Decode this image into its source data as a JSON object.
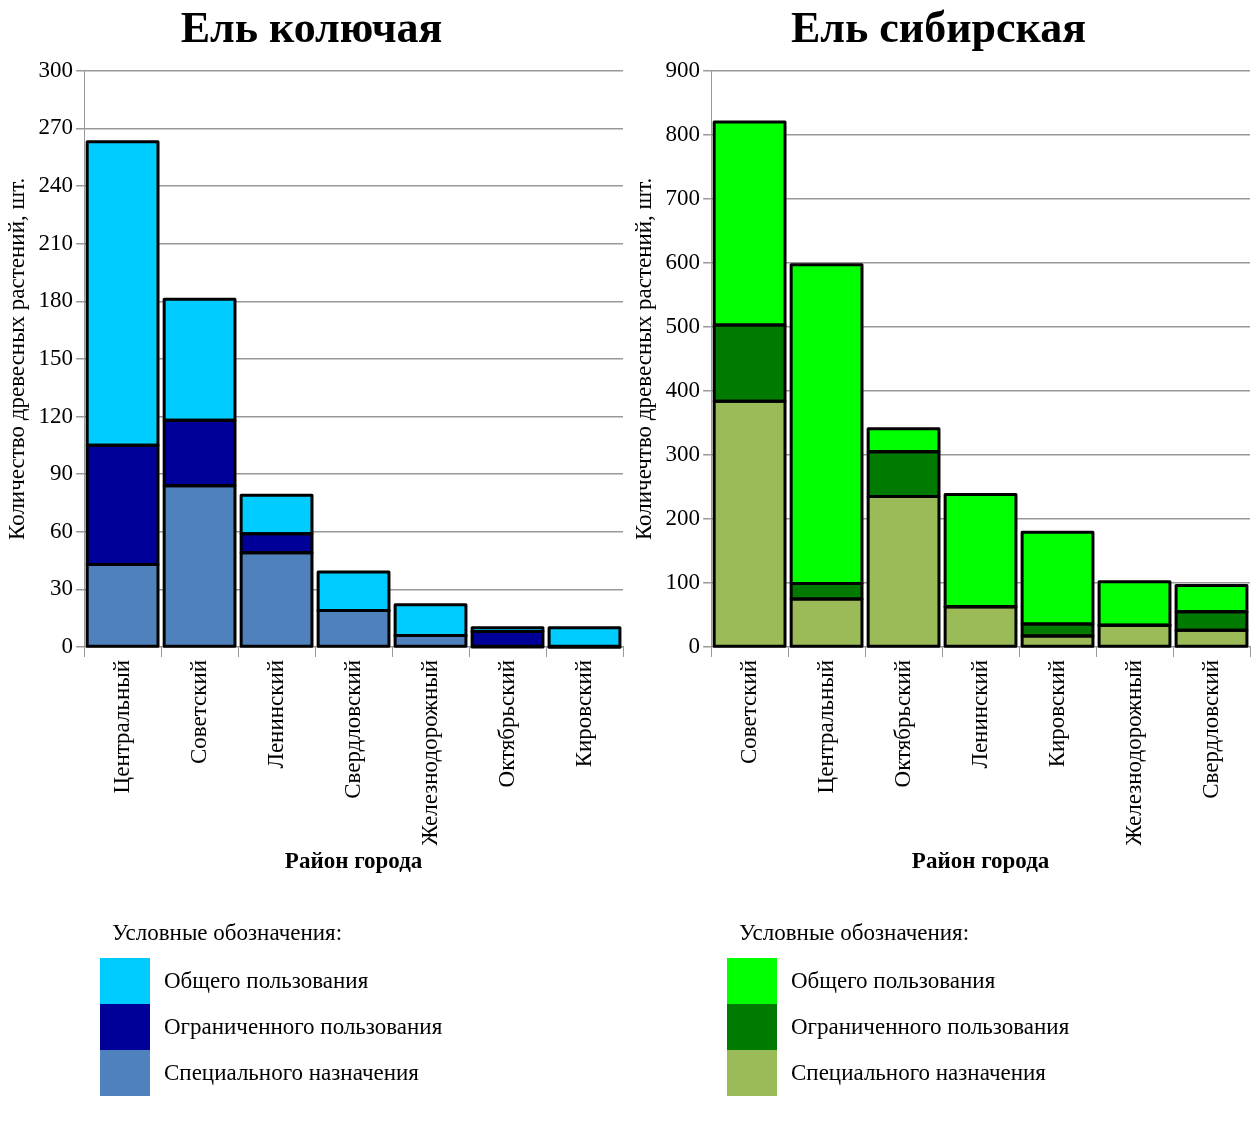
{
  "chart_data": [
    {
      "type": "bar",
      "title": "Ель колючая",
      "xlabel": "Район города",
      "ylabel": "Количество древесных растений, шт.",
      "legend_title": "Условные обозначения:",
      "stacked": true,
      "grid": "y",
      "legend": "bottom",
      "categories": [
        "Центральный",
        "Советский",
        "Ленинский",
        "Свердловский",
        "Железнодорожный",
        "Октябрьский",
        "Кировский"
      ],
      "ylim": [
        0,
        300
      ],
      "yticks": [
        0,
        30,
        60,
        90,
        120,
        150,
        180,
        210,
        240,
        270,
        300
      ],
      "series": [
        {
          "name": "Специального назначения",
          "color": "#4f81bd",
          "values": [
            43,
            84,
            49,
            19,
            6,
            0,
            0
          ]
        },
        {
          "name": "Ограниченного пользования",
          "color": "#000099",
          "values": [
            62,
            34,
            10,
            0,
            0,
            8,
            0
          ]
        },
        {
          "name": "Общего пользования",
          "color": "#00ccff",
          "values": [
            158,
            63,
            20,
            20,
            16,
            2,
            10
          ]
        }
      ]
    },
    {
      "type": "bar",
      "title": "Ель сибирская",
      "xlabel": "Район города",
      "ylabel": "Количечтво древесных растений, шт.",
      "legend_title": "Условные обозначения:",
      "stacked": true,
      "grid": "y",
      "legend": "bottom",
      "categories": [
        "Советский",
        "Центральный",
        "Октябрьский",
        "Ленинский",
        "Кировский",
        "Железнодорожный",
        "Свердловский"
      ],
      "ylim": [
        0,
        900
      ],
      "yticks": [
        0,
        100,
        200,
        300,
        400,
        500,
        600,
        700,
        800,
        900
      ],
      "series": [
        {
          "name": "Специального назначения",
          "color": "#9bbb59",
          "values": [
            384,
            75,
            235,
            63,
            17,
            34,
            26
          ]
        },
        {
          "name": "Ограниченного пользования",
          "color": "#007a00",
          "values": [
            119,
            24,
            70,
            0,
            19,
            0,
            29
          ]
        },
        {
          "name": "Общего пользования",
          "color": "#00ff00",
          "values": [
            317,
            498,
            36,
            175,
            143,
            68,
            41
          ]
        }
      ]
    }
  ]
}
